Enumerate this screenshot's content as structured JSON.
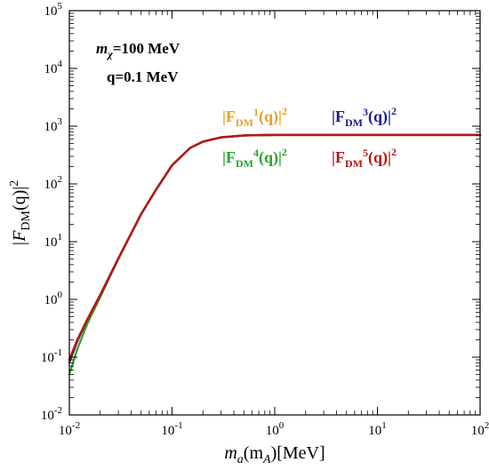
{
  "chart_data": {
    "type": "line",
    "x_scale": "log",
    "y_scale": "log",
    "xlim": [
      0.01,
      100
    ],
    "ylim": [
      0.01,
      100000
    ],
    "xlabel": {
      "base": "m",
      "sub": "a",
      "mid": "(m",
      "sub2": "A",
      "tail": ")[MeV]"
    },
    "ylabel": {
      "open": "|F",
      "sub": "DM",
      "tail": "(q)|",
      "sup": "2"
    },
    "x_ticks": [
      {
        "value": 0.01,
        "base": "10",
        "exp": "-2"
      },
      {
        "value": 0.1,
        "base": "10",
        "exp": "-1"
      },
      {
        "value": 1,
        "base": "10",
        "exp": "0"
      },
      {
        "value": 10,
        "base": "10",
        "exp": "1"
      },
      {
        "value": 100,
        "base": "10",
        "exp": "2"
      }
    ],
    "y_ticks": [
      {
        "value": 0.01,
        "base": "10",
        "exp": "-2"
      },
      {
        "value": 0.1,
        "base": "10",
        "exp": "-1"
      },
      {
        "value": 1,
        "base": "10",
        "exp": "0"
      },
      {
        "value": 10,
        "base": "10",
        "exp": "1"
      },
      {
        "value": 100,
        "base": "10",
        "exp": "2"
      },
      {
        "value": 1000,
        "base": "10",
        "exp": "3"
      },
      {
        "value": 10000,
        "base": "10",
        "exp": "4"
      },
      {
        "value": 100000,
        "base": "10",
        "exp": "5"
      }
    ],
    "annotations": {
      "mass": {
        "base": "m",
        "sub": "χ",
        "tail": "=100 MeV"
      },
      "momentum": "q=0.1 MeV"
    },
    "series": [
      {
        "name": {
          "open": "|F",
          "sub": "DM",
          "sup1": "1",
          "mid": "(q)|",
          "sup2": "2"
        },
        "color": "#e8a020",
        "width": 2.2,
        "x": [
          0.01,
          0.012,
          0.015,
          0.02,
          0.03,
          0.05,
          0.07,
          0.1,
          0.15,
          0.2,
          0.3,
          0.5,
          0.7,
          1,
          2,
          5,
          10,
          100
        ],
        "y": [
          0.09,
          0.2,
          0.45,
          1.2,
          5.1,
          30,
          80,
          210,
          420,
          540,
          640,
          690,
          700,
          705,
          705,
          705,
          705,
          705
        ]
      },
      {
        "name": {
          "open": "|F",
          "sub": "DM",
          "sup1": "3",
          "mid": "(q)|",
          "sup2": "2"
        },
        "color": "#1a1a8c",
        "width": 2.2,
        "x": [
          0.01,
          0.012,
          0.015,
          0.02,
          0.03,
          0.05,
          0.07,
          0.1,
          0.15,
          0.2,
          0.3,
          0.5,
          0.7,
          1,
          2,
          5,
          10,
          100
        ],
        "y": [
          0.08,
          0.19,
          0.44,
          1.2,
          5.1,
          30,
          80,
          210,
          420,
          540,
          640,
          690,
          700,
          705,
          705,
          705,
          705,
          705
        ]
      },
      {
        "name": {
          "open": "|F",
          "sub": "DM",
          "sup1": "4",
          "mid": "(q)|",
          "sup2": "2"
        },
        "color": "#2ca02c",
        "width": 2.2,
        "x": [
          0.01,
          0.012,
          0.015,
          0.02,
          0.03,
          0.05,
          0.07,
          0.1,
          0.15,
          0.2,
          0.3,
          0.5,
          0.7,
          1,
          2,
          5,
          10,
          100
        ],
        "y": [
          0.05,
          0.14,
          0.38,
          1.1,
          5.0,
          30,
          80,
          210,
          420,
          540,
          640,
          690,
          700,
          705,
          705,
          705,
          705,
          705
        ]
      },
      {
        "name": {
          "open": "|F",
          "sub": "DM",
          "sup1": "5",
          "mid": "(q)|",
          "sup2": "2"
        },
        "color": "#b01818",
        "width": 2.6,
        "x": [
          0.01,
          0.012,
          0.015,
          0.02,
          0.03,
          0.05,
          0.07,
          0.1,
          0.15,
          0.2,
          0.3,
          0.5,
          0.7,
          1,
          2,
          5,
          10,
          100
        ],
        "y": [
          0.09,
          0.2,
          0.45,
          1.2,
          5.1,
          30,
          80,
          210,
          420,
          540,
          640,
          690,
          700,
          705,
          705,
          705,
          705,
          705
        ]
      }
    ],
    "grid": false,
    "legend_position": "upper-middle"
  }
}
